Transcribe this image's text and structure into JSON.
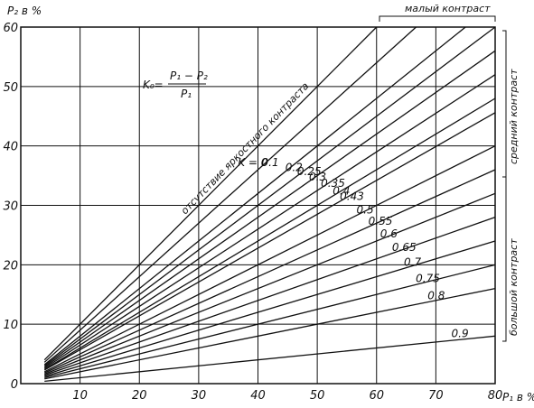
{
  "chart_data": {
    "type": "line",
    "ylabel": "P₂ в %",
    "xlabel": "P₁ в %",
    "xlim": [
      0,
      80
    ],
    "ylim": [
      0,
      60
    ],
    "x_ticks": [
      10,
      20,
      30,
      40,
      50,
      60,
      70,
      80
    ],
    "y_ticks": [
      0,
      10,
      20,
      30,
      40,
      50,
      60
    ],
    "x_tick_labels": [
      "10",
      "20",
      "30",
      "40",
      "50",
      "60",
      "70",
      "80"
    ],
    "y_tick_labels": [
      "0",
      "10",
      "20",
      "30",
      "40",
      "50",
      "60"
    ],
    "grid": true,
    "formula": {
      "lhs": "K₀=",
      "numerator": "P₁ − P₂",
      "denominator": "P₁"
    },
    "series": [
      {
        "name": "K = 0",
        "k": 0
      },
      {
        "name": "0.1",
        "k": 0.1
      },
      {
        "name": "0.2",
        "k": 0.2
      },
      {
        "name": "0.25",
        "k": 0.25
      },
      {
        "name": "0.3",
        "k": 0.3
      },
      {
        "name": "0.35",
        "k": 0.35
      },
      {
        "name": "0.4",
        "k": 0.4
      },
      {
        "name": "0.43",
        "k": 0.43
      },
      {
        "name": "0.5",
        "k": 0.5
      },
      {
        "name": "0.55",
        "k": 0.55
      },
      {
        "name": "0.6",
        "k": 0.6
      },
      {
        "name": "0.65",
        "k": 0.65
      },
      {
        "name": "0.7",
        "k": 0.7
      },
      {
        "name": "0.75",
        "k": 0.75
      },
      {
        "name": "0.8",
        "k": 0.8
      },
      {
        "name": "0.9",
        "k": 0.9
      }
    ],
    "annotations": {
      "diagonal": "отсутствие яркостного контраста",
      "zones": [
        {
          "label": "малый контраст",
          "k_range": [
            0,
            0.2
          ]
        },
        {
          "label": "средний контраст",
          "k_range": [
            0.2,
            0.5
          ]
        },
        {
          "label": "большой контраст",
          "k_range": [
            0.5,
            1
          ]
        }
      ]
    }
  }
}
